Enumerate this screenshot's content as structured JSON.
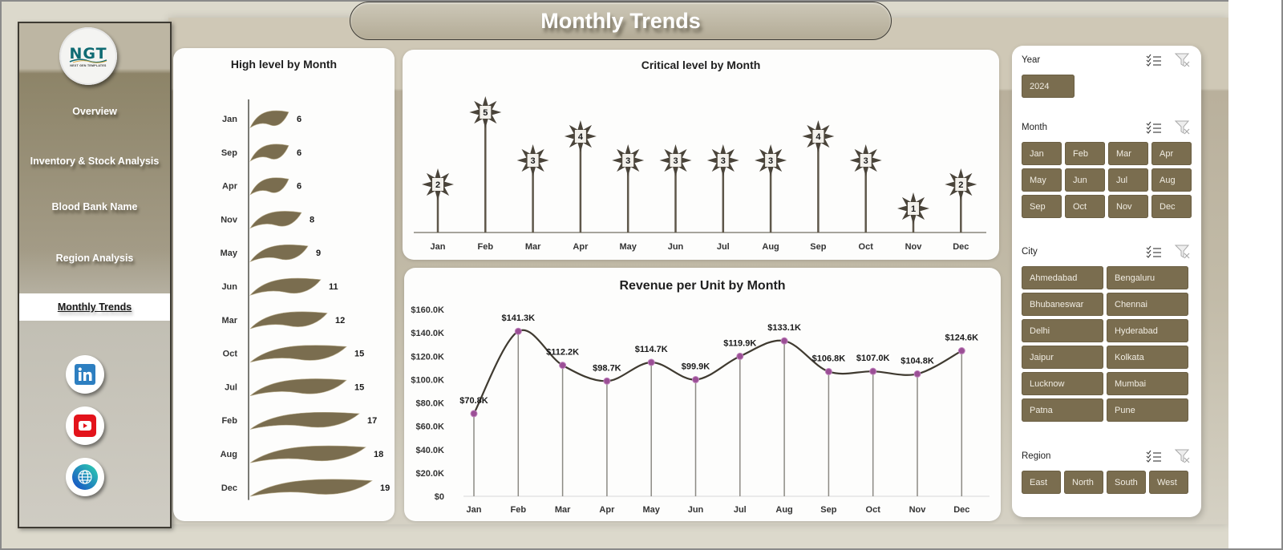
{
  "header": {
    "title": "Monthly Trends"
  },
  "sidebar": {
    "logo": {
      "text": "NGT",
      "subtitle": "NEXT GEN TEMPLATES"
    },
    "items": [
      {
        "label": "Overview",
        "active": false
      },
      {
        "label": "Inventory & Stock Analysis",
        "active": false
      },
      {
        "label": "Blood Bank Name",
        "active": false
      },
      {
        "label": "Region Analysis",
        "active": false
      },
      {
        "label": "Monthly Trends",
        "active": true
      }
    ],
    "social": [
      {
        "name": "linkedin",
        "icon": "linkedin-icon",
        "color": "#2d7fc1"
      },
      {
        "name": "youtube",
        "icon": "youtube-icon",
        "color": "#e3131b"
      },
      {
        "name": "website",
        "icon": "globe-icon",
        "color": "#1d8fd6"
      }
    ]
  },
  "charts": {
    "high_level": {
      "title": "High level by Month"
    },
    "critical_level": {
      "title": "Critical level by Month"
    },
    "revenue": {
      "title": "Revenue per Unit by Month"
    }
  },
  "chart_data": [
    {
      "type": "bar",
      "orientation": "horizontal",
      "title": "High level by Month",
      "categories": [
        "Jan",
        "Sep",
        "Apr",
        "Nov",
        "May",
        "Jun",
        "Mar",
        "Oct",
        "Jul",
        "Feb",
        "Aug",
        "Dec"
      ],
      "values": [
        6,
        6,
        6,
        8,
        9,
        11,
        12,
        15,
        15,
        17,
        18,
        19
      ],
      "xlabel": "",
      "ylabel": "",
      "grid": false,
      "bar_shape": "wave-flag",
      "color": "#7a6d4f"
    },
    {
      "type": "bar",
      "style": "lollipop",
      "title": "Critical level by Month",
      "categories": [
        "Jan",
        "Feb",
        "Mar",
        "Apr",
        "May",
        "Jun",
        "Jul",
        "Aug",
        "Sep",
        "Oct",
        "Nov",
        "Dec"
      ],
      "values": [
        2,
        5,
        3,
        4,
        3,
        3,
        3,
        3,
        4,
        3,
        1,
        2
      ],
      "xlabel": "",
      "ylabel": "",
      "grid": false,
      "marker": "star",
      "color": "#4a443a"
    },
    {
      "type": "line",
      "title": "Revenue per Unit by Month",
      "categories": [
        "Jan",
        "Feb",
        "Mar",
        "Apr",
        "May",
        "Jun",
        "Jul",
        "Aug",
        "Sep",
        "Oct",
        "Nov",
        "Dec"
      ],
      "values": [
        70.8,
        141.3,
        112.2,
        98.7,
        114.7,
        99.9,
        119.9,
        133.1,
        106.8,
        107.0,
        104.8,
        124.6
      ],
      "labels": [
        "$70.8K",
        "$141.3K",
        "$112.2K",
        "$98.7K",
        "$114.7K",
        "$99.9K",
        "$119.9K",
        "$133.1K",
        "$106.8K",
        "$107.0K",
        "$104.8K",
        "$124.6K"
      ],
      "yticks": [
        "$0",
        "$20.0K",
        "$40.0K",
        "$60.0K",
        "$80.0K",
        "$100.0K",
        "$120.0K",
        "$140.0K",
        "$160.0K"
      ],
      "ylim": [
        0,
        160
      ],
      "yunit": "thousands USD",
      "smooth": true,
      "drop_lines": true,
      "grid": false,
      "line_color": "#3f3a30",
      "marker_color": "#9b4f96"
    }
  ],
  "slicers": {
    "year": {
      "title": "Year",
      "items": [
        "2024"
      ]
    },
    "month": {
      "title": "Month",
      "items": [
        "Jan",
        "Feb",
        "Mar",
        "Apr",
        "May",
        "Jun",
        "Jul",
        "Aug",
        "Sep",
        "Oct",
        "Nov",
        "Dec"
      ]
    },
    "city": {
      "title": "City",
      "items": [
        "Ahmedabad",
        "Bengaluru",
        "Bhubaneswar",
        "Chennai",
        "Delhi",
        "Hyderabad",
        "Jaipur",
        "Kolkata",
        "Lucknow",
        "Mumbai",
        "Patna",
        "Pune"
      ]
    },
    "region": {
      "title": "Region",
      "items": [
        "East",
        "North",
        "South",
        "West"
      ]
    },
    "icons": {
      "multi_select": "multi-select-icon",
      "clear_filter": "clear-filter-icon"
    }
  },
  "colors": {
    "accent": "#7a6d4f",
    "sidebar": "#8d8468",
    "background": "#dcd9cc",
    "marker": "#9b4f96"
  }
}
